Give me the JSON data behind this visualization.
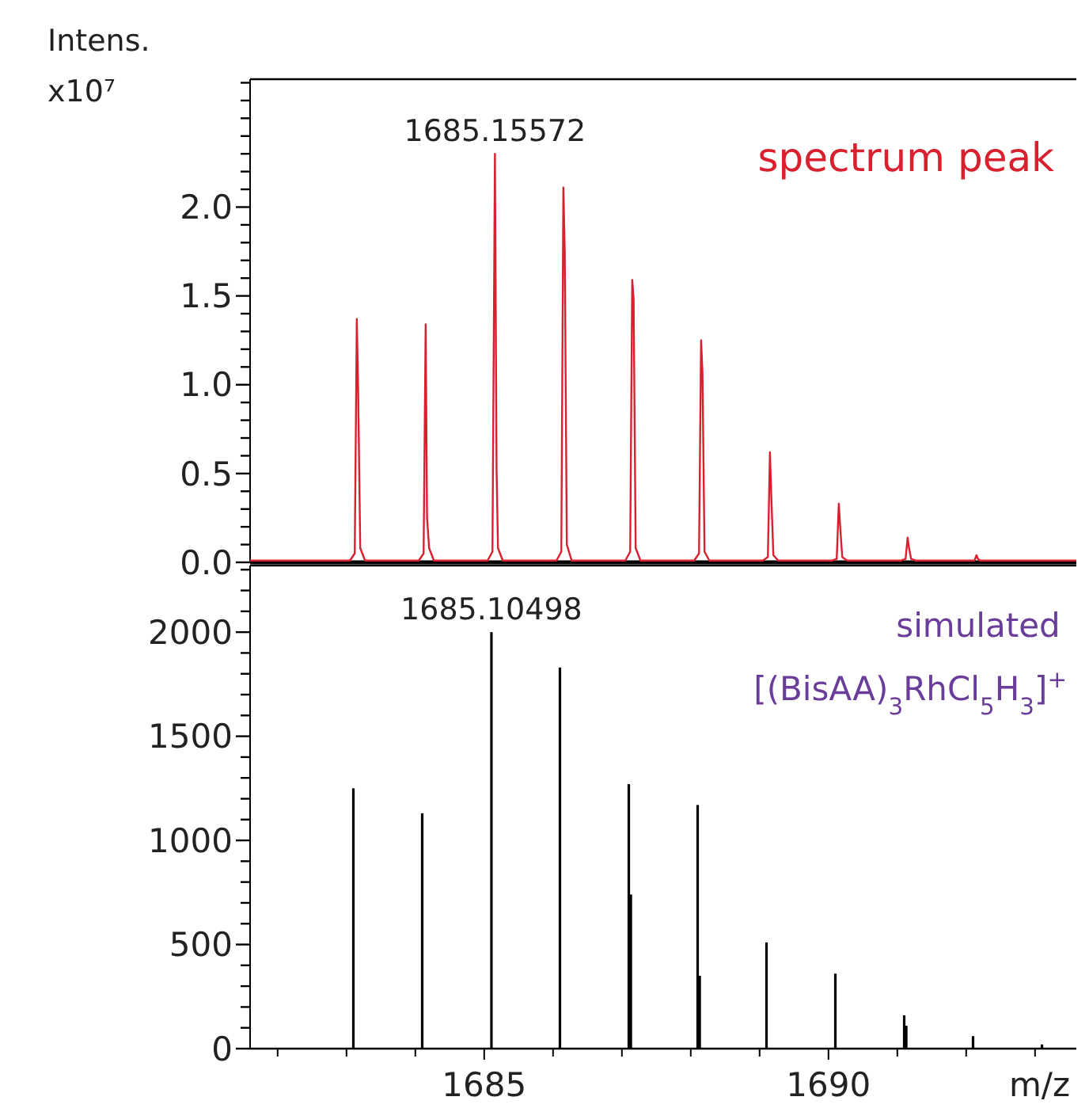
{
  "chart_data": [
    {
      "type": "line",
      "ylabel": "Intens. x10⁷",
      "xlim": [
        1681.6,
        1693.6
      ],
      "ylim": [
        0,
        2.72
      ],
      "tick_labels": "y",
      "legend": "top right",
      "yticks": [
        {
          "value": 0,
          "label": "0.0"
        },
        {
          "value": 0.1,
          "label": null
        },
        {
          "value": 0.2,
          "label": null
        },
        {
          "value": 0.3,
          "label": null
        },
        {
          "value": 0.4,
          "label": null
        },
        {
          "value": 0.5,
          "label": "0.5"
        },
        {
          "value": 0.6,
          "label": null
        },
        {
          "value": 0.7,
          "label": null
        },
        {
          "value": 0.8,
          "label": null
        },
        {
          "value": 0.9,
          "label": null
        },
        {
          "value": 1,
          "label": "1.0"
        },
        {
          "value": 1.1,
          "label": null
        },
        {
          "value": 1.2,
          "label": null
        },
        {
          "value": 1.3,
          "label": null
        },
        {
          "value": 1.4,
          "label": null
        },
        {
          "value": 1.5,
          "label": "1.5"
        },
        {
          "value": 1.6,
          "label": null
        },
        {
          "value": 1.7,
          "label": null
        },
        {
          "value": 1.8,
          "label": null
        },
        {
          "value": 1.9,
          "label": null
        },
        {
          "value": 2,
          "label": "2.0"
        },
        {
          "value": 2.1,
          "label": null
        },
        {
          "value": 2.2,
          "label": null
        },
        {
          "value": 2.3,
          "label": null
        },
        {
          "value": 2.4,
          "label": null
        },
        {
          "value": 2.5,
          "label": null
        },
        {
          "value": 2.6,
          "label": null
        },
        {
          "value": 2.7,
          "label": null
        }
      ],
      "annotations": [
        {
          "text": "1685.15572",
          "x": 1685.156,
          "y": 2.3
        }
      ],
      "series": [
        {
          "name": "spectrum peak",
          "color": "#d9202f",
          "x": [
            1681.6,
            1683.05,
            1683.12,
            1683.15,
            1683.17,
            1683.2,
            1683.27,
            1683.65,
            1684.05,
            1684.12,
            1684.15,
            1684.17,
            1684.2,
            1684.27,
            1684.65,
            1685.05,
            1685.12,
            1685.156,
            1685.18,
            1685.2,
            1685.27,
            1685.65,
            1686.05,
            1686.12,
            1686.15,
            1686.17,
            1686.2,
            1686.27,
            1686.65,
            1687.05,
            1687.12,
            1687.15,
            1687.17,
            1687.2,
            1687.27,
            1687.65,
            1688.05,
            1688.12,
            1688.15,
            1688.17,
            1688.2,
            1688.27,
            1688.65,
            1689.05,
            1689.12,
            1689.15,
            1689.17,
            1689.2,
            1689.27,
            1689.65,
            1690.05,
            1690.12,
            1690.15,
            1690.17,
            1690.2,
            1690.27,
            1690.65,
            1691.05,
            1691.12,
            1691.15,
            1691.17,
            1691.2,
            1691.27,
            1691.65,
            1692.05,
            1692.12,
            1692.15,
            1692.17,
            1692.2,
            1692.27,
            1693.6
          ],
          "values": [
            0.01,
            0.01,
            0.05,
            1.37,
            0.95,
            0.08,
            0.01,
            0.01,
            0.01,
            0.05,
            1.34,
            0.25,
            0.08,
            0.01,
            0.01,
            0.01,
            0.06,
            2.3,
            0.52,
            0.08,
            0.01,
            0.01,
            0.01,
            0.06,
            2.11,
            1.75,
            0.1,
            0.01,
            0.01,
            0.01,
            0.06,
            1.59,
            1.48,
            0.08,
            0.01,
            0.01,
            0.01,
            0.05,
            1.25,
            1.07,
            0.06,
            0.01,
            0.01,
            0.01,
            0.03,
            0.62,
            0.37,
            0.04,
            0.01,
            0.01,
            0.01,
            0.02,
            0.33,
            0.2,
            0.03,
            0.01,
            0.01,
            0.01,
            0.02,
            0.14,
            0.08,
            0.02,
            0.01,
            0.01,
            0.01,
            0.01,
            0.04,
            0.02,
            0.01,
            0.01,
            0.01
          ]
        }
      ]
    },
    {
      "type": "bar",
      "xlabel": "m/z",
      "xlim": [
        1681.6,
        1693.6
      ],
      "ylim": [
        0,
        2320
      ],
      "xticks": [
        {
          "value": 1682,
          "label": null
        },
        {
          "value": 1683,
          "label": null
        },
        {
          "value": 1684,
          "label": null
        },
        1685,
        {
          "value": 1686,
          "label": null
        },
        {
          "value": 1687,
          "label": null
        },
        {
          "value": 1688,
          "label": null
        },
        {
          "value": 1689,
          "label": null
        },
        1690,
        {
          "value": 1691,
          "label": null
        },
        {
          "value": 1692,
          "label": null
        },
        {
          "value": 1693,
          "label": null
        }
      ],
      "yticks": [
        0,
        {
          "value": 100,
          "label": null
        },
        {
          "value": 200,
          "label": null
        },
        {
          "value": 300,
          "label": null
        },
        {
          "value": 400,
          "label": null
        },
        500,
        {
          "value": 600,
          "label": null
        },
        {
          "value": 700,
          "label": null
        },
        {
          "value": 800,
          "label": null
        },
        {
          "value": 900,
          "label": null
        },
        1000,
        {
          "value": 1100,
          "label": null
        },
        {
          "value": 1200,
          "label": null
        },
        {
          "value": 1300,
          "label": null
        },
        {
          "value": 1400,
          "label": null
        },
        1500,
        {
          "value": 1600,
          "label": null
        },
        {
          "value": 1700,
          "label": null
        },
        {
          "value": 1800,
          "label": null
        },
        {
          "value": 1900,
          "label": null
        },
        2000,
        {
          "value": 2100,
          "label": null
        },
        {
          "value": 2200,
          "label": null
        },
        {
          "value": 2300,
          "label": null
        }
      ],
      "annotations": [
        {
          "text": "1685.10498",
          "x": 1685.105,
          "y": 2000
        },
        "simulated",
        "[(BisAA)$_{3}$RhCl$_{5}$H$_{3}$]$^{+}$"
      ],
      "series": [
        {
          "color": "#000000",
          "x": [
            1683.1,
            1684.1,
            1685.105,
            1686.1,
            1687.1,
            1687.13,
            1688.1,
            1688.13,
            1689.1,
            1690.1,
            1691.1,
            1691.13,
            1692.1,
            1693.1
          ],
          "values": [
            1250,
            1130,
            2000,
            1830,
            1270,
            740,
            1170,
            350,
            510,
            360,
            160,
            110,
            60,
            20
          ]
        }
      ]
    }
  ]
}
